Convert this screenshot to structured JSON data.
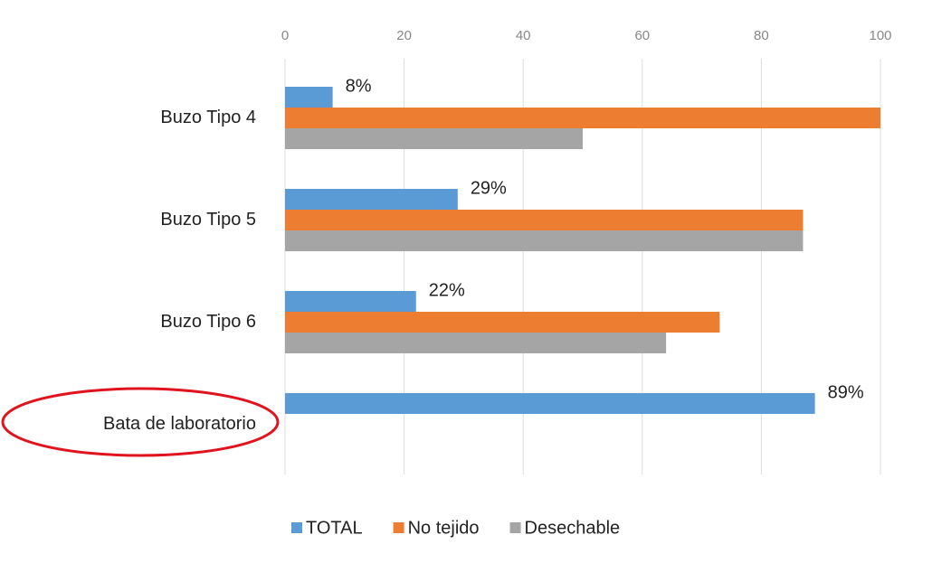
{
  "chart_data": {
    "type": "bar",
    "orientation": "horizontal",
    "categories": [
      "Buzo Tipo 4",
      "Buzo Tipo 5",
      "Buzo Tipo 6",
      "Bata de laboratorio"
    ],
    "series": [
      {
        "name": "TOTAL",
        "color": "#5b9bd5",
        "values": [
          8,
          29,
          22,
          89
        ],
        "value_labels": [
          "8%",
          "29%",
          "22%",
          "89%"
        ]
      },
      {
        "name": "No tejido",
        "color": "#ed7d31",
        "values": [
          100,
          87,
          73,
          null
        ]
      },
      {
        "name": "Desechable",
        "color": "#a5a5a5",
        "values": [
          50,
          87,
          64,
          null
        ]
      }
    ],
    "xlim": [
      0,
      100
    ],
    "xticks": [
      0,
      20,
      40,
      60,
      80,
      100
    ],
    "grid": true,
    "legend": "bottom"
  }
}
